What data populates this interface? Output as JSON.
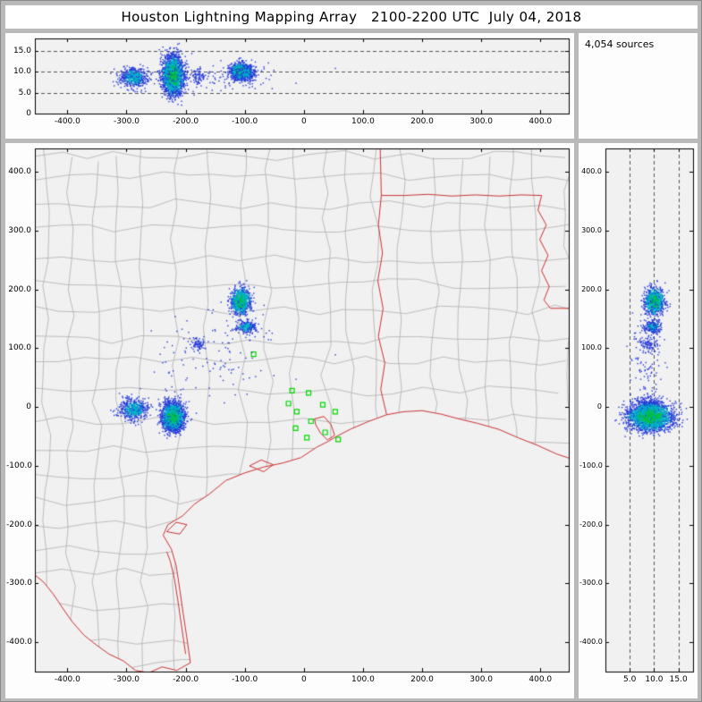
{
  "title": "Houston Lightning Mapping Array   2100-2200 UTC  July 04, 2018",
  "sources_label": "4,054 sources",
  "colors": {
    "matte": "#b9b9b9",
    "panel_bg": "#fdfdfd",
    "plot_bg": "#f1f1f1",
    "frame": "#000000",
    "county_line": "#b0b0b0",
    "state_border": "#cc3333",
    "dashed_line": "#555555",
    "station": "#00d800"
  },
  "chart_data": {
    "type": "scatter",
    "total_sources": 4054,
    "axes": {
      "ew_lim": [
        -455,
        448
      ],
      "ns_lim": [
        -450,
        440
      ],
      "alt_lim": [
        0,
        18
      ],
      "dashed_alt": [
        5,
        10,
        15
      ],
      "ew_ticks": [
        {
          "v": -400,
          "l": "-400.0"
        },
        {
          "v": -300,
          "l": "-300.0"
        },
        {
          "v": -200,
          "l": "-200.0"
        },
        {
          "v": -100,
          "l": "-100.0"
        },
        {
          "v": 0,
          "l": "0"
        },
        {
          "v": 100,
          "l": "100.0"
        },
        {
          "v": 200,
          "l": "200.0"
        },
        {
          "v": 300,
          "l": "300.0"
        },
        {
          "v": 400,
          "l": "400.0"
        }
      ],
      "ns_ticks": [
        {
          "v": 400,
          "l": "400.0"
        },
        {
          "v": 300,
          "l": "300.0"
        },
        {
          "v": 200,
          "l": "200.0"
        },
        {
          "v": 100,
          "l": "100.0"
        },
        {
          "v": 0,
          "l": "0"
        },
        {
          "v": -100,
          "l": "-100.0"
        },
        {
          "v": -200,
          "l": "-200.0"
        },
        {
          "v": -300,
          "l": "-300.0"
        },
        {
          "v": -400,
          "l": "-400.0"
        }
      ],
      "alt_ticks": [
        {
          "v": 0,
          "l": "0"
        },
        {
          "v": 5,
          "l": "5.0"
        },
        {
          "v": 10,
          "l": "10.0"
        },
        {
          "v": 15,
          "l": "15.0"
        }
      ],
      "alt_x_ticks": [
        {
          "v": 5,
          "l": "5.0"
        },
        {
          "v": 10,
          "l": "10.0"
        },
        {
          "v": 15,
          "l": "15.0"
        }
      ]
    },
    "clusters": [
      {
        "name": "north-storm",
        "ew": -107,
        "sd_ew": 8,
        "ns": 180,
        "sd_ns": 11,
        "alt": 10.1,
        "sd_alt": 1.0,
        "count": 850,
        "colors": [
          "#2438d8",
          "#00b2c8",
          "#00c23c"
        ]
      },
      {
        "name": "north-small",
        "ew": -98,
        "sd_ew": 9,
        "ns": 136,
        "sd_ns": 5,
        "alt": 9.7,
        "sd_alt": 0.8,
        "count": 240,
        "colors": [
          "#2438d8",
          "#00b2c8"
        ]
      },
      {
        "name": "west-storm",
        "ew": -288,
        "sd_ew": 12,
        "ns": -4,
        "sd_ns": 9,
        "alt": 8.6,
        "sd_alt": 1.2,
        "count": 520,
        "colors": [
          "#2438d8",
          "#00b2c8"
        ]
      },
      {
        "name": "southwest-storm",
        "ew": -221,
        "sd_ew": 9,
        "ns": -17,
        "sd_ns": 12,
        "alt": 9.2,
        "sd_alt": 2.3,
        "count": 2100,
        "colors": [
          "#2438d8",
          "#00b2c8",
          "#00c23c"
        ]
      },
      {
        "name": "mid-small",
        "ew": -180,
        "sd_ew": 6,
        "ns": 108,
        "sd_ns": 6,
        "alt": 9.0,
        "sd_alt": 1.0,
        "count": 70,
        "colors": [
          "#2438d8"
        ]
      },
      {
        "name": "scattered",
        "ew": -140,
        "sd_ew": 55,
        "ns": 95,
        "sd_ns": 45,
        "alt": 8.5,
        "sd_alt": 1.8,
        "count": 120,
        "colors": [
          "#2438d8"
        ]
      }
    ],
    "stations": [
      [
        -85,
        90
      ],
      [
        -20,
        28
      ],
      [
        8,
        24
      ],
      [
        -26,
        6
      ],
      [
        32,
        4
      ],
      [
        -12,
        -8
      ],
      [
        53,
        -8
      ],
      [
        12,
        -24
      ],
      [
        -14,
        -36
      ],
      [
        36,
        -43
      ],
      [
        5,
        -52
      ],
      [
        58,
        -55
      ]
    ],
    "map_borders": {
      "rio_grande": [
        [
          -192,
          -435
        ],
        [
          -215,
          -448
        ],
        [
          -240,
          -442
        ],
        [
          -262,
          -452
        ],
        [
          -285,
          -448
        ],
        [
          -305,
          -432
        ],
        [
          -330,
          -420
        ],
        [
          -352,
          -404
        ],
        [
          -372,
          -388
        ],
        [
          -392,
          -365
        ],
        [
          -408,
          -342
        ],
        [
          -424,
          -318
        ],
        [
          -440,
          -298
        ],
        [
          -458,
          -283
        ]
      ],
      "coast": [
        [
          -192,
          -435
        ],
        [
          -198,
          -392
        ],
        [
          -204,
          -352
        ],
        [
          -210,
          -310
        ],
        [
          -216,
          -270
        ],
        [
          -224,
          -242
        ],
        [
          -238,
          -218
        ],
        [
          -230,
          -200
        ],
        [
          -205,
          -185
        ],
        [
          -185,
          -165
        ],
        [
          -160,
          -148
        ],
        [
          -132,
          -125
        ],
        [
          -100,
          -112
        ],
        [
          -68,
          -102
        ],
        [
          -35,
          -95
        ],
        [
          -5,
          -86
        ],
        [
          22,
          -68
        ],
        [
          42,
          -58
        ],
        [
          55,
          -50
        ],
        [
          78,
          -38
        ],
        [
          108,
          -25
        ],
        [
          140,
          -13
        ],
        [
          168,
          -8
        ],
        [
          200,
          -6
        ],
        [
          232,
          -12
        ],
        [
          262,
          -20
        ],
        [
          295,
          -28
        ],
        [
          330,
          -38
        ],
        [
          362,
          -52
        ],
        [
          395,
          -65
        ],
        [
          428,
          -80
        ],
        [
          458,
          -90
        ]
      ],
      "lagoon": [
        [
          -200,
          -420
        ],
        [
          -207,
          -372
        ],
        [
          -213,
          -330
        ],
        [
          -219,
          -292
        ],
        [
          -226,
          -262
        ],
        [
          -232,
          -246
        ]
      ],
      "bays": [
        [
          [
            18,
            -20
          ],
          [
            34,
            -16
          ],
          [
            46,
            -30
          ],
          [
            52,
            -48
          ],
          [
            40,
            -56
          ],
          [
            28,
            -44
          ],
          [
            20,
            -30
          ],
          [
            18,
            -20
          ]
        ],
        [
          [
            -92,
            -100
          ],
          [
            -72,
            -90
          ],
          [
            -52,
            -98
          ],
          [
            -68,
            -110
          ],
          [
            -92,
            -100
          ]
        ],
        [
          [
            -232,
            -212
          ],
          [
            -216,
            -196
          ],
          [
            -198,
            -200
          ],
          [
            -210,
            -216
          ],
          [
            -232,
            -212
          ]
        ]
      ],
      "sabine_river": [
        [
          140,
          -13
        ],
        [
          130,
          30
        ],
        [
          137,
          75
        ],
        [
          126,
          120
        ],
        [
          134,
          168
        ],
        [
          125,
          215
        ],
        [
          133,
          262
        ],
        [
          126,
          310
        ],
        [
          131,
          360
        ]
      ],
      "tx_ar_border": [
        [
          131,
          360
        ],
        [
          129,
          445
        ]
      ],
      "la_ar_border": [
        [
          131,
          360
        ],
        [
          170,
          360
        ],
        [
          210,
          362
        ],
        [
          250,
          359
        ],
        [
          290,
          361
        ],
        [
          330,
          359
        ],
        [
          368,
          361
        ],
        [
          402,
          360
        ]
      ],
      "mississippi_river": [
        [
          402,
          360
        ],
        [
          396,
          335
        ],
        [
          410,
          310
        ],
        [
          399,
          285
        ],
        [
          413,
          258
        ],
        [
          402,
          232
        ],
        [
          415,
          205
        ],
        [
          406,
          182
        ],
        [
          417,
          168
        ]
      ],
      "la_ms_border": [
        [
          417,
          168
        ],
        [
          458,
          168
        ]
      ]
    },
    "county_grid": {
      "seed": 1337,
      "spacing_km": 48,
      "jitter_km": 9
    }
  }
}
